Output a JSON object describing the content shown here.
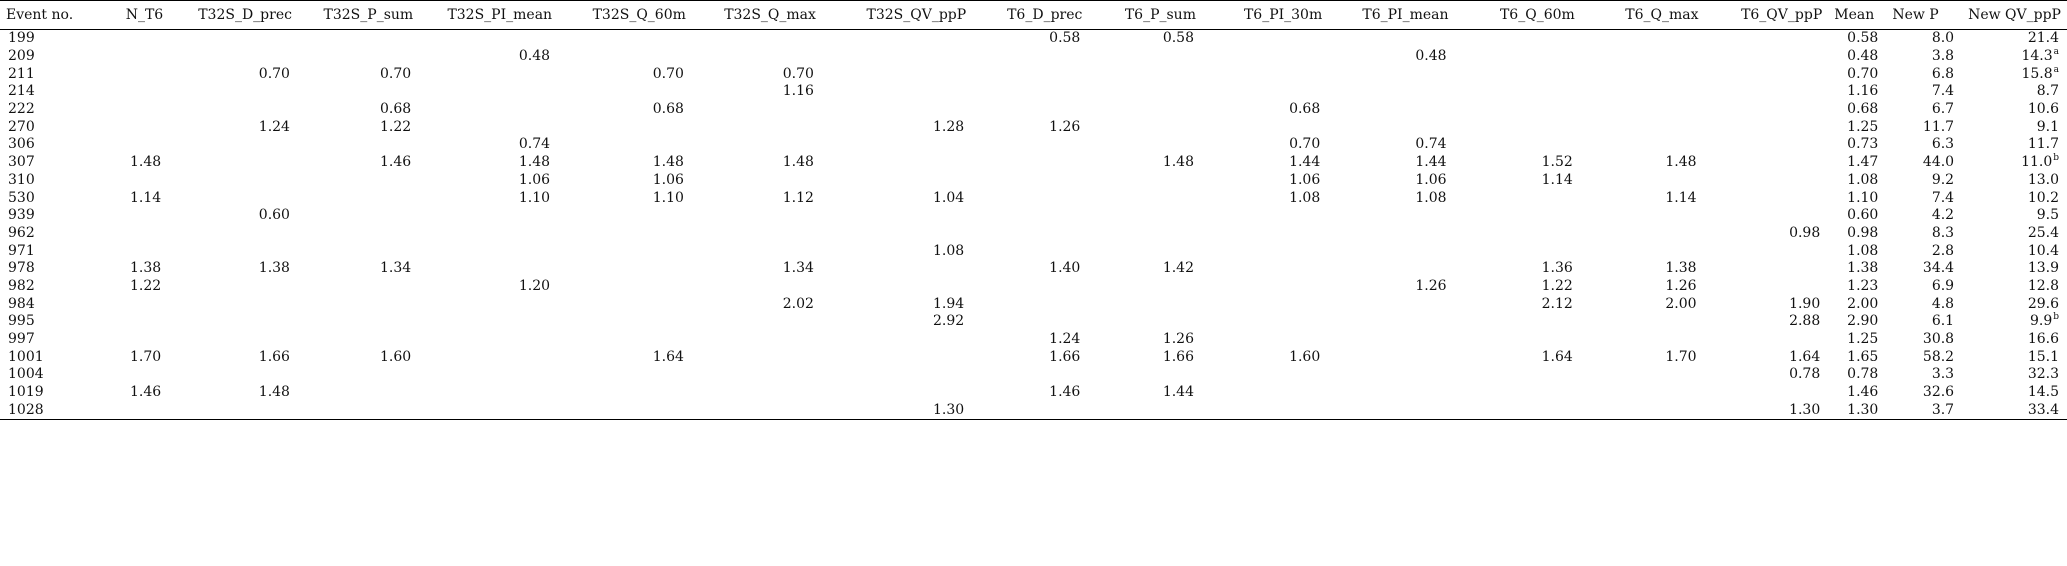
{
  "table": {
    "columns": [
      "Event no.",
      "N_T6",
      "T32S_D_prec",
      "T32S_P_sum",
      "T32S_PI_mean",
      "T32S_Q_60m",
      "T32S_Q_max",
      "T32S_QV_ppP",
      "T6_D_prec",
      "T6_P_sum",
      "T6_PI_30m",
      "T6_PI_mean",
      "T6_Q_60m",
      "T6_Q_max",
      "T6_QV_ppP",
      "Mean",
      "New P",
      "New QV_ppP"
    ],
    "rows": [
      {
        "cells": [
          "199",
          "",
          "",
          "",
          "",
          "",
          "",
          "",
          "0.58",
          "0.58",
          "",
          "",
          "",
          "",
          "",
          "0.58",
          "8.0",
          "21.4"
        ],
        "sup": ""
      },
      {
        "cells": [
          "209",
          "",
          "",
          "",
          "0.48",
          "",
          "",
          "",
          "",
          "",
          "",
          "0.48",
          "",
          "",
          "",
          "0.48",
          "3.8",
          "14.3"
        ],
        "sup": "a"
      },
      {
        "cells": [
          "211",
          "",
          "0.70",
          "0.70",
          "",
          "0.70",
          "0.70",
          "",
          "",
          "",
          "",
          "",
          "",
          "",
          "",
          "0.70",
          "6.8",
          "15.8"
        ],
        "sup": "a"
      },
      {
        "cells": [
          "214",
          "",
          "",
          "",
          "",
          "",
          "1.16",
          "",
          "",
          "",
          "",
          "",
          "",
          "",
          "",
          "1.16",
          "7.4",
          "8.7"
        ],
        "sup": ""
      },
      {
        "cells": [
          "222",
          "",
          "",
          "0.68",
          "",
          "0.68",
          "",
          "",
          "",
          "",
          "0.68",
          "",
          "",
          "",
          "",
          "0.68",
          "6.7",
          "10.6"
        ],
        "sup": ""
      },
      {
        "cells": [
          "270",
          "",
          "1.24",
          "1.22",
          "",
          "",
          "",
          "1.28",
          "1.26",
          "",
          "",
          "",
          "",
          "",
          "",
          "1.25",
          "11.7",
          "9.1"
        ],
        "sup": ""
      },
      {
        "cells": [
          "306",
          "",
          "",
          "",
          "0.74",
          "",
          "",
          "",
          "",
          "",
          "0.70",
          "0.74",
          "",
          "",
          "",
          "0.73",
          "6.3",
          "11.7"
        ],
        "sup": ""
      },
      {
        "cells": [
          "307",
          "1.48",
          "",
          "1.46",
          "1.48",
          "1.48",
          "1.48",
          "",
          "",
          "1.48",
          "1.44",
          "1.44",
          "1.52",
          "1.48",
          "",
          "1.47",
          "44.0",
          "11.0"
        ],
        "sup": "b"
      },
      {
        "cells": [
          "310",
          "",
          "",
          "",
          "1.06",
          "1.06",
          "",
          "",
          "",
          "",
          "1.06",
          "1.06",
          "1.14",
          "",
          "",
          "1.08",
          "9.2",
          "13.0"
        ],
        "sup": ""
      },
      {
        "cells": [
          "530",
          "1.14",
          "",
          "",
          "1.10",
          "1.10",
          "1.12",
          "1.04",
          "",
          "",
          "1.08",
          "1.08",
          "",
          "1.14",
          "",
          "1.10",
          "7.4",
          "10.2"
        ],
        "sup": ""
      },
      {
        "cells": [
          "939",
          "",
          "0.60",
          "",
          "",
          "",
          "",
          "",
          "",
          "",
          "",
          "",
          "",
          "",
          "",
          "0.60",
          "4.2",
          "9.5"
        ],
        "sup": ""
      },
      {
        "cells": [
          "962",
          "",
          "",
          "",
          "",
          "",
          "",
          "",
          "",
          "",
          "",
          "",
          "",
          "",
          "0.98",
          "0.98",
          "8.3",
          "25.4"
        ],
        "sup": ""
      },
      {
        "cells": [
          "971",
          "",
          "",
          "",
          "",
          "",
          "",
          "1.08",
          "",
          "",
          "",
          "",
          "",
          "",
          "",
          "1.08",
          "2.8",
          "10.4"
        ],
        "sup": ""
      },
      {
        "cells": [
          "978",
          "1.38",
          "1.38",
          "1.34",
          "",
          "",
          "1.34",
          "",
          "1.40",
          "1.42",
          "",
          "",
          "1.36",
          "1.38",
          "",
          "1.38",
          "34.4",
          "13.9"
        ],
        "sup": ""
      },
      {
        "cells": [
          "982",
          "1.22",
          "",
          "",
          "1.20",
          "",
          "",
          "",
          "",
          "",
          "",
          "1.26",
          "1.22",
          "1.26",
          "",
          "1.23",
          "6.9",
          "12.8"
        ],
        "sup": ""
      },
      {
        "cells": [
          "984",
          "",
          "",
          "",
          "",
          "",
          "2.02",
          "1.94",
          "",
          "",
          "",
          "",
          "2.12",
          "2.00",
          "1.90",
          "2.00",
          "4.8",
          "29.6"
        ],
        "sup": ""
      },
      {
        "cells": [
          "995",
          "",
          "",
          "",
          "",
          "",
          "",
          "2.92",
          "",
          "",
          "",
          "",
          "",
          "",
          "2.88",
          "2.90",
          "6.1",
          "9.9"
        ],
        "sup": "b"
      },
      {
        "cells": [
          "997",
          "",
          "",
          "",
          "",
          "",
          "",
          "",
          "1.24",
          "1.26",
          "",
          "",
          "",
          "",
          "",
          "1.25",
          "30.8",
          "16.6"
        ],
        "sup": ""
      },
      {
        "cells": [
          "1001",
          "1.70",
          "1.66",
          "1.60",
          "",
          "1.64",
          "",
          "",
          "1.66",
          "1.66",
          "1.60",
          "",
          "1.64",
          "1.70",
          "1.64",
          "1.65",
          "58.2",
          "15.1"
        ],
        "sup": ""
      },
      {
        "cells": [
          "1004",
          "",
          "",
          "",
          "",
          "",
          "",
          "",
          "",
          "",
          "",
          "",
          "",
          "",
          "0.78",
          "0.78",
          "3.3",
          "32.3"
        ],
        "sup": ""
      },
      {
        "cells": [
          "1019",
          "1.46",
          "1.48",
          "",
          "",
          "",
          "",
          "",
          "1.46",
          "1.44",
          "",
          "",
          "",
          "",
          "",
          "1.46",
          "32.6",
          "14.5"
        ],
        "sup": ""
      },
      {
        "cells": [
          "1028",
          "",
          "",
          "",
          "",
          "",
          "",
          "1.30",
          "",
          "",
          "",
          "",
          "",
          "",
          "1.30",
          "1.30",
          "3.7",
          "33.4"
        ],
        "sup": ""
      }
    ]
  }
}
